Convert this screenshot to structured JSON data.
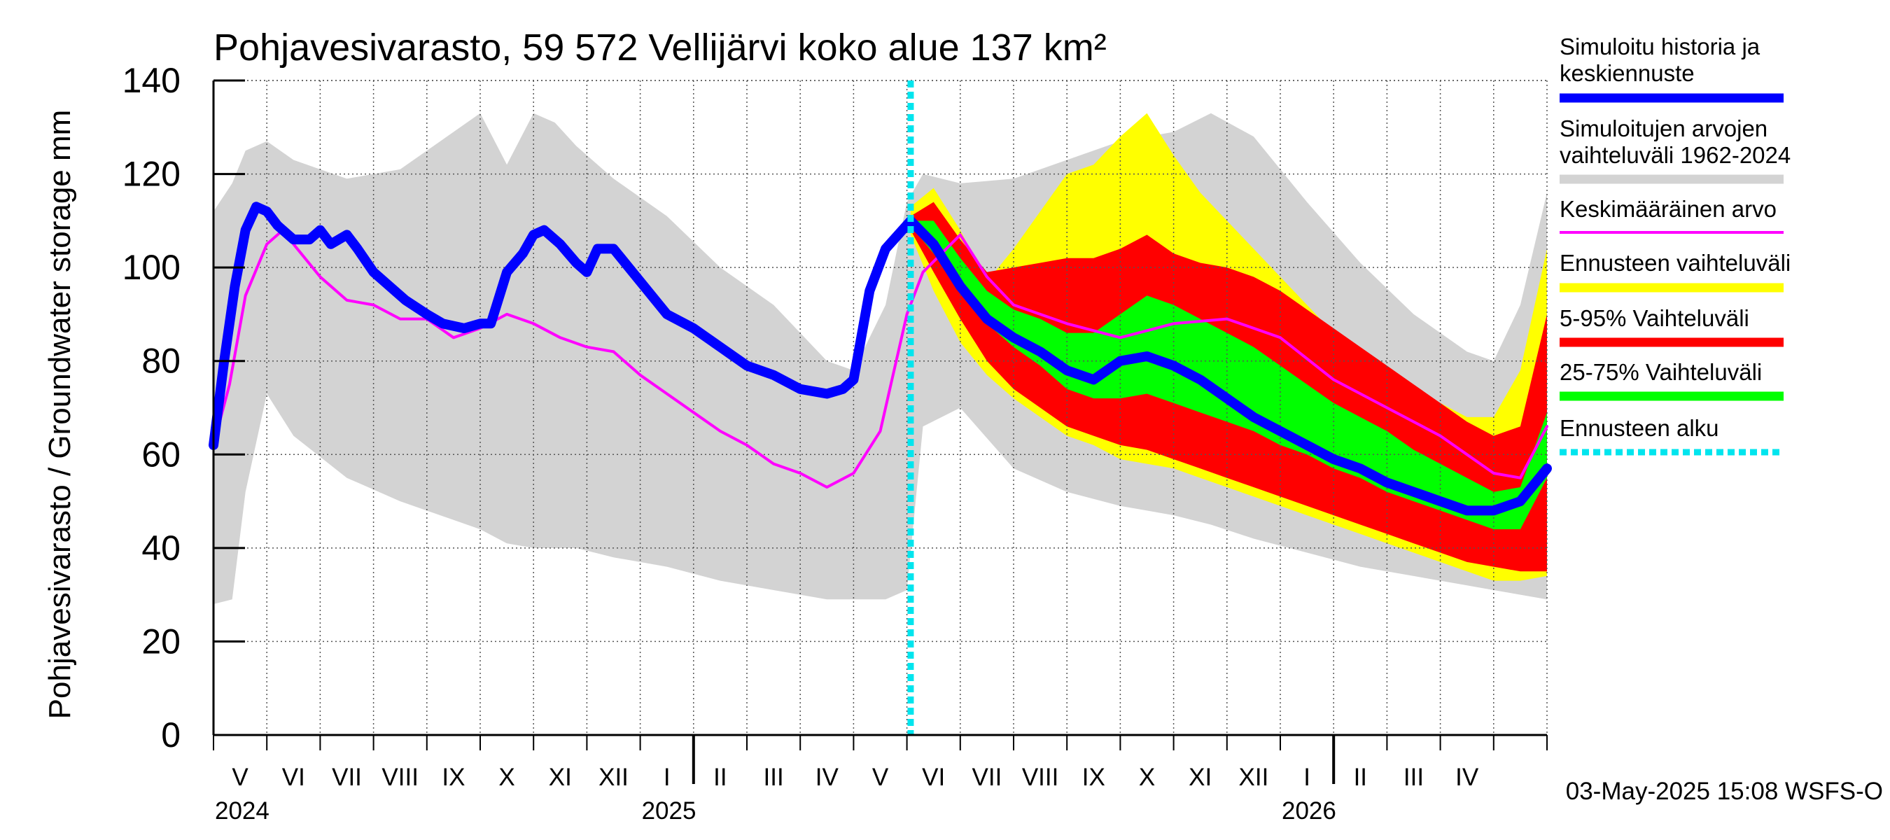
{
  "chart_data": {
    "type": "area",
    "title": "Pohjavesivarasto, 59 572 Vellijärvi koko alue 137 km²",
    "ylabel": "Pohjavesivarasto / Groundwater storage   mm",
    "ylim": [
      0,
      140
    ],
    "yticks": [
      0,
      20,
      40,
      60,
      80,
      100,
      120,
      140
    ],
    "x_unit": "months since 2024-04-01",
    "xlim": [
      0,
      25.0
    ],
    "forecast_start": 13.07,
    "month_labels": [
      {
        "label": "V",
        "x": 0.5
      },
      {
        "label": "VI",
        "x": 1.5
      },
      {
        "label": "VII",
        "x": 2.5
      },
      {
        "label": "VIII",
        "x": 3.5
      },
      {
        "label": "IX",
        "x": 4.5
      },
      {
        "label": "X",
        "x": 5.5
      },
      {
        "label": "XI",
        "x": 6.5
      },
      {
        "label": "XII",
        "x": 7.5
      },
      {
        "label": "I",
        "x": 8.5
      },
      {
        "label": "II",
        "x": 9.5
      },
      {
        "label": "III",
        "x": 10.5
      },
      {
        "label": "IV",
        "x": 11.5
      },
      {
        "label": "V",
        "x": 12.5
      },
      {
        "label": "VI",
        "x": 13.5
      },
      {
        "label": "VII",
        "x": 14.5
      },
      {
        "label": "VIII",
        "x": 15.5
      },
      {
        "label": "IX",
        "x": 16.5
      },
      {
        "label": "X",
        "x": 17.5
      },
      {
        "label": "XI",
        "x": 18.5
      },
      {
        "label": "XII",
        "x": 19.5
      },
      {
        "label": "I",
        "x": 20.5
      },
      {
        "label": "II",
        "x": 21.5
      },
      {
        "label": "III",
        "x": 22.5
      },
      {
        "label": "IV",
        "x": 23.5
      }
    ],
    "year_labels": [
      {
        "label": "2024",
        "x": 0.0
      },
      {
        "label": "2025",
        "x": 8.0
      },
      {
        "label": "2026",
        "x": 20.0
      }
    ],
    "year_boundaries": [
      9.0,
      21.0
    ],
    "series": [
      {
        "name": "Simuloitujen arvojen vaihteluväli 1962-2024",
        "kind": "band",
        "color": "#d3d3d3",
        "x": [
          0,
          0.35,
          0.6,
          1.0,
          1.5,
          2.5,
          3.5,
          4.5,
          5.0,
          5.5,
          6.0,
          6.4,
          6.8,
          7.5,
          8.5,
          9.5,
          10.5,
          11.0,
          11.5,
          12.0,
          12.6,
          13.0,
          13.3,
          14.0,
          15.0,
          16.0,
          17.0,
          18.0,
          18.7,
          19.5,
          20.5,
          21.5,
          22.5,
          23.5,
          24.0,
          24.5,
          25.0
        ],
        "lower": [
          28,
          29,
          52,
          73,
          64,
          55,
          50,
          46,
          44,
          41,
          40,
          40,
          40,
          38,
          36,
          33,
          31,
          30,
          29,
          29,
          29,
          31,
          66,
          70,
          57,
          52,
          49,
          47,
          45,
          42,
          39,
          36,
          34,
          32,
          31,
          30,
          29
        ],
        "upper": [
          112,
          118,
          125,
          127,
          123,
          119,
          121,
          129,
          133,
          122,
          133,
          131,
          126,
          119,
          111,
          100,
          92,
          86,
          80,
          78,
          92,
          114,
          120,
          118,
          119,
          123,
          127,
          129,
          133,
          128,
          114,
          101,
          90,
          82,
          80,
          92,
          116
        ]
      },
      {
        "name": "Ennusteen vaihteluväli",
        "kind": "band",
        "color": "#ffff00",
        "x": [
          13.07,
          13.5,
          14.0,
          14.5,
          15.0,
          15.5,
          16.0,
          16.5,
          17.0,
          17.5,
          18.0,
          18.5,
          19.0,
          19.5,
          20.0,
          20.5,
          21.0,
          21.5,
          22.0,
          22.5,
          23.0,
          23.5,
          24.0,
          24.5,
          25.0
        ],
        "lower": [
          107,
          95,
          84,
          77,
          72,
          68,
          64,
          62,
          59,
          58,
          57,
          55,
          53,
          51,
          49,
          47,
          45,
          43,
          41,
          39,
          37,
          35,
          33,
          33,
          34
        ],
        "upper": [
          113,
          117,
          108,
          97,
          104,
          112,
          120,
          122,
          128,
          133,
          124,
          116,
          110,
          104,
          98,
          92,
          86,
          81,
          77,
          74,
          71,
          68,
          68,
          78,
          104
        ]
      },
      {
        "name": "5-95% Vaihteluväli",
        "kind": "band",
        "color": "#ff0000",
        "x": [
          13.07,
          13.5,
          14.0,
          14.5,
          15.0,
          15.5,
          16.0,
          16.5,
          17.0,
          17.5,
          18.0,
          18.5,
          19.0,
          19.5,
          20.0,
          20.5,
          21.0,
          21.5,
          22.0,
          22.5,
          23.0,
          23.5,
          24.0,
          24.5,
          25.0
        ],
        "lower": [
          108,
          99,
          89,
          80,
          74,
          70,
          66,
          64,
          62,
          61,
          59,
          57,
          55,
          53,
          51,
          49,
          47,
          45,
          43,
          41,
          39,
          37,
          36,
          35,
          35
        ],
        "upper": [
          111,
          114,
          106,
          99,
          100,
          101,
          102,
          102,
          104,
          107,
          103,
          101,
          100,
          98,
          95,
          91,
          87,
          83,
          79,
          75,
          71,
          67,
          64,
          66,
          90
        ]
      },
      {
        "name": "25-75% Vaihteluväli",
        "kind": "band",
        "color": "#00ff00",
        "x": [
          13.07,
          13.5,
          14.0,
          14.5,
          15.0,
          15.5,
          16.0,
          16.5,
          17.0,
          17.5,
          18.0,
          18.5,
          19.0,
          19.5,
          20.0,
          20.5,
          21.0,
          21.5,
          22.0,
          22.5,
          23.0,
          23.5,
          24.0,
          24.5,
          25.0
        ],
        "lower": [
          109,
          103,
          95,
          88,
          83,
          79,
          74,
          72,
          72,
          73,
          71,
          69,
          67,
          65,
          62,
          60,
          57,
          55,
          52,
          50,
          48,
          46,
          44,
          44,
          55
        ],
        "upper": [
          110,
          110,
          102,
          95,
          91,
          89,
          86,
          86,
          90,
          94,
          92,
          89,
          86,
          83,
          79,
          75,
          71,
          68,
          65,
          61,
          58,
          55,
          52,
          53,
          69
        ]
      },
      {
        "name": "Keskimääräinen arvo",
        "kind": "line",
        "color": "#ff00ff",
        "x": [
          0,
          0.3,
          0.6,
          1.0,
          1.3,
          1.5,
          2.0,
          2.5,
          3.0,
          3.5,
          4.0,
          4.5,
          5.0,
          5.5,
          6.0,
          6.5,
          7.0,
          7.5,
          8.0,
          8.5,
          9.0,
          9.5,
          10.0,
          10.5,
          11.0,
          11.5,
          12.0,
          12.5,
          12.7,
          13.0,
          13.3,
          14.0,
          14.5,
          15.0,
          16.0,
          17.0,
          18.0,
          19.0,
          20.0,
          21.0,
          22.0,
          23.0,
          23.5,
          24.0,
          24.5,
          25.0
        ],
        "values": [
          62,
          75,
          94,
          105,
          108,
          105,
          98,
          93,
          92,
          89,
          89,
          85,
          87,
          90,
          88,
          85,
          83,
          82,
          77,
          73,
          69,
          65,
          62,
          58,
          56,
          53,
          56,
          65,
          75,
          90,
          99,
          107,
          98,
          92,
          88,
          85,
          88,
          89,
          85,
          76,
          70,
          64,
          60,
          56,
          55,
          66
        ]
      },
      {
        "name": "Simuloitu historia ja keskiennuste",
        "kind": "line",
        "color": "#0000ff",
        "x": [
          0,
          0.2,
          0.4,
          0.6,
          0.8,
          1.0,
          1.2,
          1.5,
          1.8,
          2.0,
          2.2,
          2.5,
          2.7,
          3.0,
          3.3,
          3.6,
          4.0,
          4.3,
          4.7,
          5.0,
          5.2,
          5.5,
          5.8,
          6.0,
          6.2,
          6.5,
          6.8,
          7.0,
          7.2,
          7.5,
          8.0,
          8.5,
          9.0,
          9.5,
          10.0,
          10.5,
          11.0,
          11.5,
          11.8,
          12.0,
          12.3,
          12.6,
          13.07,
          13.5,
          14.0,
          14.5,
          15.0,
          15.5,
          16.0,
          16.5,
          17.0,
          17.5,
          18.0,
          18.5,
          19.0,
          19.5,
          20.0,
          20.5,
          21.0,
          21.5,
          22.0,
          22.5,
          23.0,
          23.5,
          24.0,
          24.5,
          25.0
        ],
        "values": [
          62,
          80,
          96,
          108,
          113,
          112,
          109,
          106,
          106,
          108,
          105,
          107,
          104,
          99,
          96,
          93,
          90,
          88,
          87,
          88,
          88,
          99,
          103,
          107,
          108,
          105,
          101,
          99,
          104,
          104,
          97,
          90,
          87,
          83,
          79,
          77,
          74,
          73,
          74,
          76,
          95,
          104,
          110,
          105,
          96,
          89,
          85,
          82,
          78,
          76,
          80,
          81,
          79,
          76,
          72,
          68,
          65,
          62,
          59,
          57,
          54,
          52,
          50,
          48,
          48,
          50,
          57
        ]
      }
    ],
    "legend_position": "right",
    "legend": [
      {
        "label": "Simuloitu historia ja keskiennuste",
        "color": "#0000ff",
        "style": "solid"
      },
      {
        "label": "Simuloitujen arvojen vaihteluväli 1962-2024",
        "color": "#d3d3d3",
        "style": "solid"
      },
      {
        "label": "Keskimääräinen arvo",
        "color": "#ff00ff",
        "style": "thin"
      },
      {
        "label": "Ennusteen vaihteluväli",
        "color": "#ffff00",
        "style": "solid"
      },
      {
        "label": "5-95% Vaihteluväli",
        "color": "#ff0000",
        "style": "solid"
      },
      {
        "label": "25-75% Vaihteluväli",
        "color": "#00ff00",
        "style": "solid"
      },
      {
        "label": "Ennusteen alku",
        "color": "#00e5ee",
        "style": "dotted"
      }
    ],
    "footer": "03-May-2025 15:08 WSFS-O"
  }
}
